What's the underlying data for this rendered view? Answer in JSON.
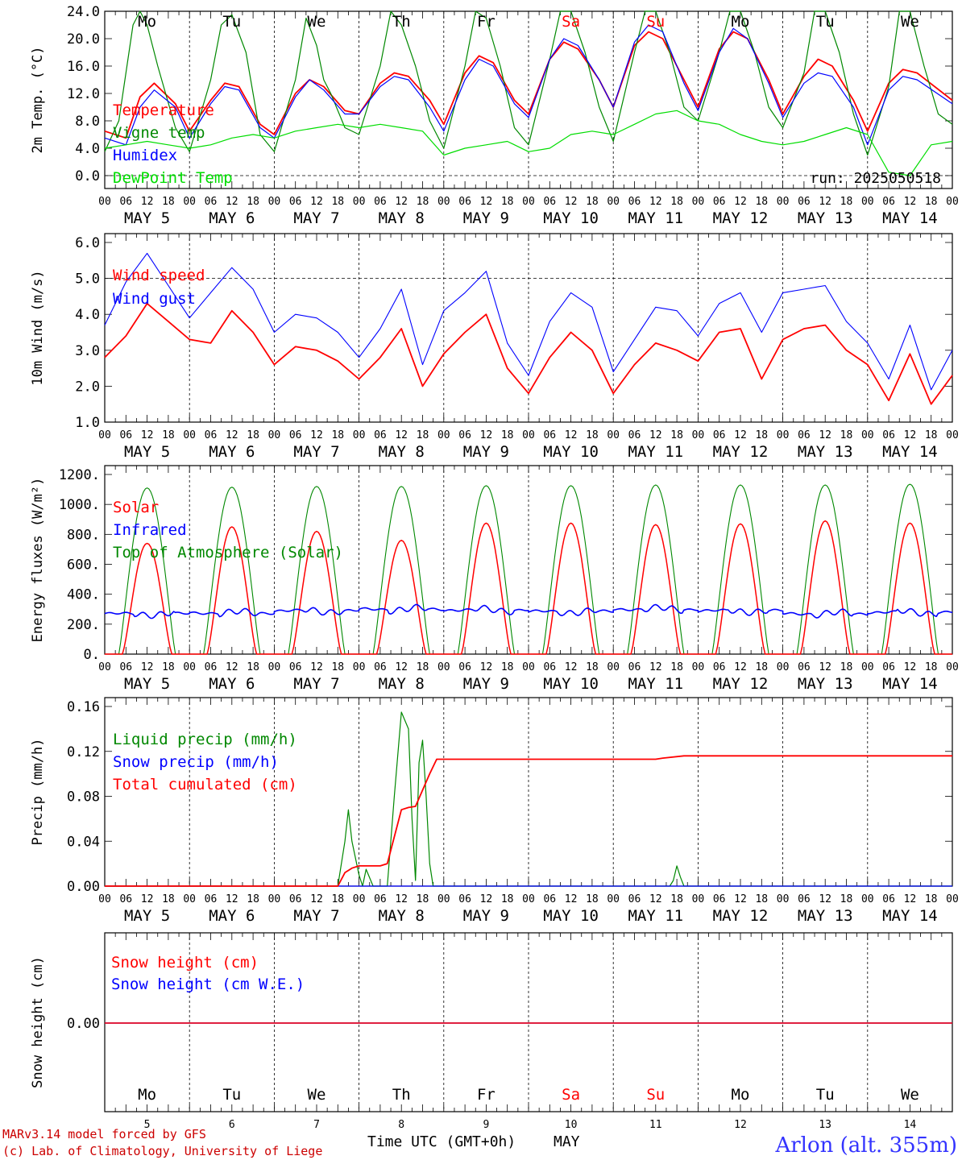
{
  "meteogram": {
    "run_label": "run: 2025050518",
    "model_credit": "MARv3.14 model forced by GFS",
    "lab_credit": "(c) Lab. of Climatology, University of Liege",
    "station": "Arlon (alt. 355m)",
    "x_axis_label": "Time UTC (GMT+0h)",
    "month_label": "MAY",
    "hour_ticks": [
      "00",
      "06",
      "12",
      "18"
    ],
    "days": [
      {
        "abbr": "Mo",
        "date": "MAY  5",
        "num": "5",
        "weekend": false
      },
      {
        "abbr": "Tu",
        "date": "MAY  6",
        "num": "6",
        "weekend": false
      },
      {
        "abbr": "We",
        "date": "MAY  7",
        "num": "7",
        "weekend": false
      },
      {
        "abbr": "Th",
        "date": "MAY  8",
        "num": "8",
        "weekend": false
      },
      {
        "abbr": "Fr",
        "date": "MAY  9",
        "num": "9",
        "weekend": false
      },
      {
        "abbr": "Sa",
        "date": "MAY 10",
        "num": "10",
        "weekend": true
      },
      {
        "abbr": "Su",
        "date": "MAY 11",
        "num": "11",
        "weekend": true
      },
      {
        "abbr": "Mo",
        "date": "MAY 12",
        "num": "12",
        "weekend": false
      },
      {
        "abbr": "Tu",
        "date": "MAY 13",
        "num": "13",
        "weekend": false
      },
      {
        "abbr": "We",
        "date": "MAY 14",
        "num": "14",
        "weekend": false
      }
    ]
  },
  "colors": {
    "temperature": "#ff0000",
    "vigne": "#008800",
    "humidex": "#0000ff",
    "dewpoint": "#00dd00",
    "weekend": "#ff0000",
    "station": "#3333ff",
    "credit": "#cc0000"
  },
  "chart_data": [
    {
      "type": "line",
      "ylabel": "2m Temp. (°C)",
      "ylim": [
        0,
        24
      ],
      "yticks": [
        0,
        4,
        8,
        12,
        16,
        20,
        24
      ],
      "ytick_labels": [
        "0.0",
        "4.0",
        "8.0",
        "12.0",
        "16.0",
        "20.0",
        "24.0"
      ],
      "x_unit": "hours since 2025-05-05 00 UTC",
      "xlim": [
        0,
        240
      ],
      "series": [
        {
          "name": "Temperature",
          "color": "#ff0000",
          "x": [
            0,
            6,
            10,
            14,
            20,
            24,
            30,
            34,
            38,
            44,
            48,
            54,
            58,
            62,
            68,
            72,
            78,
            82,
            86,
            92,
            96,
            102,
            106,
            110,
            116,
            120,
            126,
            130,
            134,
            140,
            144,
            150,
            154,
            158,
            164,
            168,
            174,
            178,
            182,
            188,
            192,
            198,
            202,
            206,
            212,
            216,
            222,
            226,
            230,
            240
          ],
          "y": [
            6.5,
            5.5,
            11.5,
            13.5,
            10.5,
            6.5,
            11.0,
            13.5,
            13.0,
            7.5,
            6.0,
            12.0,
            14.0,
            13.0,
            9.5,
            9.0,
            13.5,
            15.0,
            14.5,
            11.0,
            7.5,
            15.0,
            17.5,
            16.5,
            11.0,
            9.0,
            17.0,
            19.5,
            18.5,
            14.0,
            10.0,
            19.0,
            21.0,
            20.0,
            14.0,
            10.0,
            18.5,
            21.0,
            20.0,
            14.0,
            9.0,
            14.5,
            17.0,
            16.0,
            11.0,
            6.5,
            13.5,
            15.5,
            15.0,
            11.0
          ]
        },
        {
          "name": "Vigne temp",
          "color": "#008800",
          "x": [
            0,
            4,
            8,
            10,
            12,
            15,
            20,
            24,
            30,
            33,
            36,
            40,
            44,
            48,
            54,
            57,
            60,
            62,
            64,
            68,
            72,
            78,
            81,
            84,
            88,
            92,
            96,
            102,
            105,
            108,
            112,
            116,
            120,
            126,
            129,
            132,
            136,
            140,
            144,
            150,
            153,
            156,
            160,
            164,
            168,
            174,
            177,
            180,
            184,
            188,
            192,
            198,
            201,
            204,
            208,
            212,
            216,
            222,
            225,
            228,
            232,
            236,
            240
          ],
          "y": [
            3.5,
            8.0,
            22.0,
            24.0,
            22.0,
            16.0,
            7.0,
            3.5,
            14.0,
            22.0,
            23.5,
            18.0,
            6.0,
            3.5,
            14.0,
            23.0,
            19.0,
            14.0,
            12.0,
            7.0,
            6.0,
            16.0,
            24.0,
            22.0,
            16.0,
            8.0,
            4.0,
            16.0,
            24.0,
            23.0,
            16.0,
            7.0,
            4.5,
            17.0,
            24.0,
            24.0,
            18.0,
            10.0,
            5.0,
            18.0,
            24.0,
            24.0,
            18.0,
            10.0,
            8.0,
            18.0,
            24.0,
            24.0,
            18.0,
            10.0,
            7.0,
            15.0,
            24.0,
            24.0,
            18.0,
            9.0,
            3.0,
            13.0,
            24.0,
            24.0,
            16.0,
            9.0,
            7.5
          ]
        },
        {
          "name": "Humidex",
          "color": "#0000ff",
          "x": [
            0,
            6,
            10,
            14,
            20,
            24,
            30,
            34,
            38,
            44,
            48,
            54,
            58,
            62,
            68,
            72,
            78,
            82,
            86,
            92,
            96,
            102,
            106,
            110,
            116,
            120,
            126,
            130,
            134,
            140,
            144,
            150,
            154,
            158,
            164,
            168,
            174,
            178,
            182,
            188,
            192,
            198,
            202,
            206,
            212,
            216,
            222,
            226,
            230,
            240
          ],
          "y": [
            5.5,
            4.5,
            10.0,
            12.5,
            10.0,
            5.5,
            10.5,
            13.0,
            12.5,
            7.0,
            5.5,
            11.5,
            14.0,
            12.5,
            9.0,
            9.0,
            13.0,
            14.5,
            14.0,
            10.0,
            6.5,
            14.0,
            17.0,
            16.0,
            10.5,
            8.5,
            17.0,
            20.0,
            19.0,
            14.0,
            10.0,
            19.5,
            22.0,
            21.0,
            13.5,
            9.5,
            18.0,
            21.5,
            20.0,
            13.5,
            8.5,
            13.5,
            15.0,
            14.5,
            10.0,
            4.5,
            12.5,
            14.5,
            14.0,
            10.5
          ]
        },
        {
          "name": "DewPoint Temp",
          "color": "#00dd00",
          "x": [
            0,
            6,
            12,
            18,
            24,
            30,
            36,
            42,
            48,
            54,
            60,
            66,
            72,
            78,
            84,
            90,
            96,
            102,
            108,
            114,
            120,
            126,
            132,
            138,
            144,
            150,
            156,
            162,
            168,
            174,
            180,
            186,
            192,
            198,
            204,
            210,
            216,
            222,
            228,
            234,
            240
          ],
          "y": [
            4.0,
            4.5,
            5.0,
            4.5,
            4.0,
            4.5,
            5.5,
            6.0,
            5.5,
            6.5,
            7.0,
            7.5,
            7.0,
            7.5,
            7.0,
            6.5,
            3.0,
            4.0,
            4.5,
            5.0,
            3.5,
            4.0,
            6.0,
            6.5,
            6.0,
            7.5,
            9.0,
            9.5,
            8.0,
            7.5,
            6.0,
            5.0,
            4.5,
            5.0,
            6.0,
            7.0,
            6.0,
            0.5,
            0.0,
            4.5,
            5.0
          ]
        }
      ]
    },
    {
      "type": "line",
      "ylabel": "10m Wind (m/s)",
      "ylim": [
        1,
        6
      ],
      "yticks": [
        1,
        2,
        3,
        4,
        5,
        6
      ],
      "ytick_labels": [
        "1.0",
        "2.0",
        "3.0",
        "4.0",
        "5.0",
        "6.0"
      ],
      "xlim": [
        0,
        240
      ],
      "series": [
        {
          "name": "Wind speed",
          "color": "#ff0000",
          "x": [
            0,
            6,
            12,
            18,
            24,
            30,
            36,
            42,
            48,
            54,
            60,
            66,
            72,
            78,
            84,
            90,
            96,
            102,
            108,
            114,
            120,
            126,
            132,
            138,
            144,
            150,
            156,
            162,
            168,
            174,
            180,
            186,
            192,
            198,
            204,
            210,
            216,
            222,
            228,
            234,
            240
          ],
          "y": [
            2.8,
            3.4,
            4.3,
            3.8,
            3.3,
            3.2,
            4.1,
            3.5,
            2.6,
            3.1,
            3.0,
            2.7,
            2.2,
            2.8,
            3.6,
            2.0,
            2.9,
            3.5,
            4.0,
            2.5,
            1.8,
            2.8,
            3.5,
            3.0,
            1.8,
            2.6,
            3.2,
            3.0,
            2.7,
            3.5,
            3.6,
            2.2,
            3.3,
            3.6,
            3.7,
            3.0,
            2.6,
            1.6,
            2.9,
            1.5,
            2.3
          ]
        },
        {
          "name": "Wind gust",
          "color": "#0000ff",
          "x": [
            0,
            6,
            12,
            18,
            24,
            30,
            36,
            42,
            48,
            54,
            60,
            66,
            72,
            78,
            84,
            90,
            96,
            102,
            108,
            114,
            120,
            126,
            132,
            138,
            144,
            150,
            156,
            162,
            168,
            174,
            180,
            186,
            192,
            198,
            204,
            210,
            216,
            222,
            228,
            234,
            240
          ],
          "y": [
            3.7,
            4.9,
            5.7,
            4.8,
            3.9,
            4.6,
            5.3,
            4.7,
            3.5,
            4.0,
            3.9,
            3.5,
            2.8,
            3.6,
            4.7,
            2.6,
            4.1,
            4.6,
            5.2,
            3.2,
            2.3,
            3.8,
            4.6,
            4.2,
            2.4,
            3.3,
            4.2,
            4.1,
            3.4,
            4.3,
            4.6,
            3.5,
            4.6,
            4.7,
            4.8,
            3.8,
            3.2,
            2.2,
            3.7,
            1.9,
            3.0
          ]
        }
      ]
    },
    {
      "type": "line",
      "ylabel": "Energy fluxes (W/m²)",
      "ylim": [
        0,
        1200
      ],
      "yticks": [
        0,
        200,
        400,
        600,
        800,
        1000,
        1200
      ],
      "ytick_labels": [
        "0.",
        "200.",
        "400.",
        "600.",
        "800.",
        "1000.",
        "1200."
      ],
      "xlim": [
        0,
        240
      ],
      "daily_peaks": {
        "toa_solar": [
          1110,
          1115,
          1120,
          1120,
          1125,
          1125,
          1130,
          1130,
          1130,
          1135
        ],
        "solar": [
          740,
          850,
          820,
          760,
          875,
          875,
          865,
          870,
          890,
          875
        ],
        "infrared_mean": [
          270,
          275,
          290,
          300,
          295,
          285,
          300,
          290,
          270,
          280
        ]
      },
      "series": [
        {
          "name": "Solar",
          "color": "#ff0000"
        },
        {
          "name": "Infrared",
          "color": "#0000ff"
        },
        {
          "name": "Top of Atmosphere (Solar)",
          "color": "#008800"
        }
      ]
    },
    {
      "type": "line",
      "ylabel": "Precip (mm/h)",
      "ylim": [
        0,
        0.16
      ],
      "yticks": [
        0,
        0.04,
        0.08,
        0.12,
        0.16
      ],
      "ytick_labels": [
        "0.00",
        "0.04",
        "0.08",
        "0.12",
        "0.16"
      ],
      "xlim": [
        0,
        240
      ],
      "series": [
        {
          "name": "Liquid precip (mm/h)",
          "color": "#008800",
          "x": [
            0,
            66,
            68,
            69,
            70,
            72,
            73,
            74,
            76,
            80,
            82,
            84,
            86,
            87,
            88,
            89,
            90,
            91,
            92,
            93,
            94,
            96,
            98,
            160,
            161,
            162,
            163,
            164,
            240
          ],
          "y": [
            0,
            0,
            0.04,
            0.068,
            0.04,
            0.01,
            0.0,
            0.015,
            0.0,
            0,
            0.08,
            0.155,
            0.14,
            0.06,
            0.005,
            0.11,
            0.13,
            0.08,
            0.02,
            0.0,
            0.0,
            0,
            0,
            0,
            0.005,
            0.018,
            0.008,
            0,
            0
          ]
        },
        {
          "name": "Snow precip (mm/h)",
          "color": "#0000ff",
          "x": [
            0,
            240
          ],
          "y": [
            0,
            0
          ]
        },
        {
          "name": "Total cumulated (cm)",
          "color": "#ff0000",
          "x": [
            0,
            66,
            68,
            70,
            72,
            78,
            80,
            84,
            86,
            88,
            92,
            94,
            96,
            156,
            158,
            164,
            240
          ],
          "y": [
            0,
            0,
            0.012,
            0.016,
            0.018,
            0.018,
            0.02,
            0.068,
            0.07,
            0.071,
            0.1,
            0.113,
            0.113,
            0.113,
            0.114,
            0.116,
            0.116
          ]
        }
      ]
    },
    {
      "type": "line",
      "ylabel": "Snow height (cm)",
      "ytick_labels": [
        "0.00"
      ],
      "xlim": [
        0,
        240
      ],
      "series": [
        {
          "name": "Snow height (cm)",
          "color": "#ff0000",
          "x": [
            0,
            240
          ],
          "y": [
            0,
            0
          ]
        },
        {
          "name": "Snow height (cm W.E.)",
          "color": "#0000ff",
          "x": [
            0,
            240
          ],
          "y": [
            0,
            0
          ]
        }
      ]
    }
  ]
}
